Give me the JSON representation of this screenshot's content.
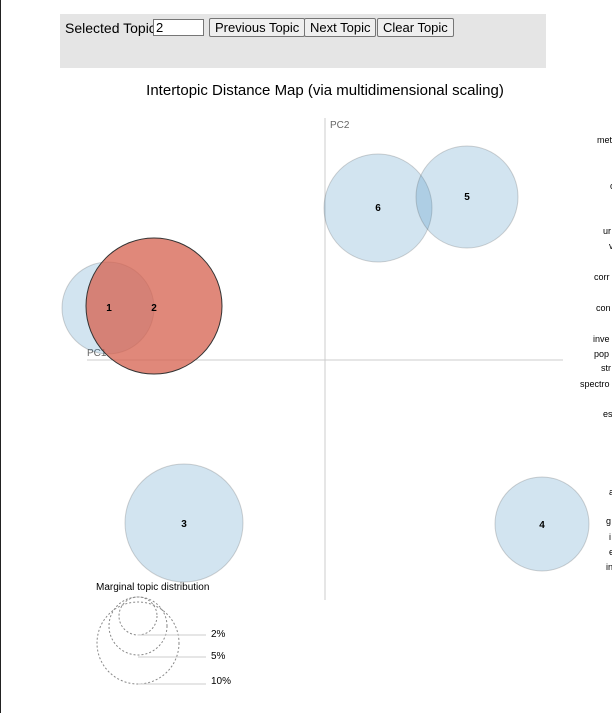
{
  "controls": {
    "selected_topic_label": "Selected Topic:",
    "selected_topic_value": "2",
    "previous_label": "Previous Topic",
    "next_label": "Next Topic",
    "clear_label": "Clear Topic"
  },
  "map": {
    "title": "Intertopic Distance Map (via multidimensional scaling)",
    "pc1_label": "PC1",
    "pc2_label": "PC2",
    "selected_color": "#d6604d",
    "default_color": "#1f77b4",
    "topics": [
      {
        "id": "1",
        "selected": false
      },
      {
        "id": "2",
        "selected": true
      },
      {
        "id": "3",
        "selected": false
      },
      {
        "id": "4",
        "selected": false
      },
      {
        "id": "5",
        "selected": false
      },
      {
        "id": "6",
        "selected": false
      }
    ]
  },
  "legend": {
    "title": "Marginal topic distribution",
    "items": [
      "2%",
      "5%",
      "10%"
    ]
  },
  "terms_partial": [
    "met",
    "c",
    "ur",
    "v",
    "corr",
    "con",
    "inve",
    "pop",
    "str",
    "spectro",
    "es",
    "a",
    "g",
    "i",
    "e",
    "in"
  ]
}
